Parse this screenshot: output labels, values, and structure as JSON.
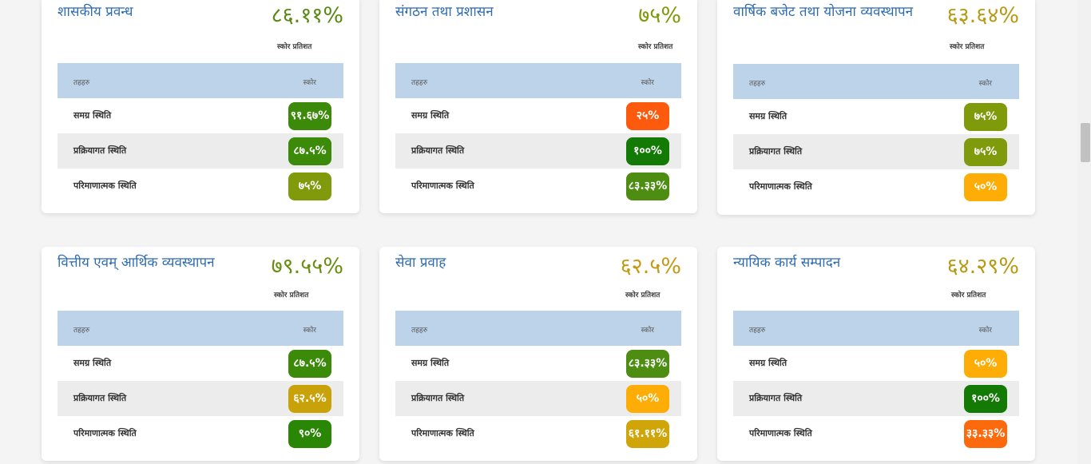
{
  "score_label": "स्कोर प्रतिशत",
  "table_headers": {
    "topic": "तहहरु",
    "score": "स्कोर"
  },
  "cards": [
    {
      "title": "शासकीय प्रवन्ध",
      "score": "८६.११%",
      "score_color": "#5a8a14",
      "rows": [
        {
          "label": "समग्र स्थिति",
          "value": "९१.६७%",
          "color": "#3c8a0a"
        },
        {
          "label": "प्रक्रियागत स्थिति",
          "value": "८७.५%",
          "color": "#3c8a0a"
        },
        {
          "label": "परिमाणात्मक स्थिति",
          "value": "७५%",
          "color": "#7f9a0a"
        }
      ]
    },
    {
      "title": "संगठन तथा प्रशासन",
      "score": "७५%",
      "score_color": "#7f9a0a",
      "rows": [
        {
          "label": "समग्र स्थिति",
          "value": "२५%",
          "color": "#fd5a0d"
        },
        {
          "label": "प्रक्रियागत स्थिति",
          "value": "१००%",
          "color": "#137a05"
        },
        {
          "label": "परिमाणात्मक स्थिति",
          "value": "८३.३३%",
          "color": "#4d8d12"
        }
      ]
    },
    {
      "title": "वार्षिक बजेट तथा योजना व्यवस्थापन",
      "score": "६३.६४%",
      "score_color": "#b79a14",
      "rows": [
        {
          "label": "समग्र स्थिति",
          "value": "७५%",
          "color": "#7f9a0a"
        },
        {
          "label": "प्रक्रियागत स्थिति",
          "value": "७५%",
          "color": "#7f9a0a"
        },
        {
          "label": "परिमाणात्मक स्थिति",
          "value": "५०%",
          "color": "#fdad05"
        }
      ]
    },
    {
      "title": "वित्तीय एवम् आर्थिक व्यवस्थापन",
      "score": "७९.५५%",
      "score_color": "#6a8e12",
      "rows": [
        {
          "label": "समग्र स्थिति",
          "value": "८७.५%",
          "color": "#3c8a0a"
        },
        {
          "label": "प्रक्रियागत स्थिति",
          "value": "६२.५%",
          "color": "#c9a20a"
        },
        {
          "label": "परिमाणात्मक स्थिति",
          "value": "९०%",
          "color": "#2a8605"
        }
      ]
    },
    {
      "title": "सेवा प्रवाह",
      "score": "६२.५%",
      "score_color": "#c49a14",
      "rows": [
        {
          "label": "समग्र स्थिति",
          "value": "८३.३३%",
          "color": "#4d8d12"
        },
        {
          "label": "प्रक्रियागत स्थिति",
          "value": "५०%",
          "color": "#fdad05"
        },
        {
          "label": "परिमाणात्मक स्थिति",
          "value": "६१.११%",
          "color": "#cfa50a"
        }
      ]
    },
    {
      "title": "न्यायिक कार्य सम्पादन",
      "score": "६४.२९%",
      "score_color": "#b79a14",
      "rows": [
        {
          "label": "समग्र स्थिति",
          "value": "५०%",
          "color": "#fdad05"
        },
        {
          "label": "प्रक्रियागत स्थिति",
          "value": "१००%",
          "color": "#137a05"
        },
        {
          "label": "परिमाणात्मक स्थिति",
          "value": "३३.३३%",
          "color": "#fd6a0d"
        }
      ]
    }
  ]
}
